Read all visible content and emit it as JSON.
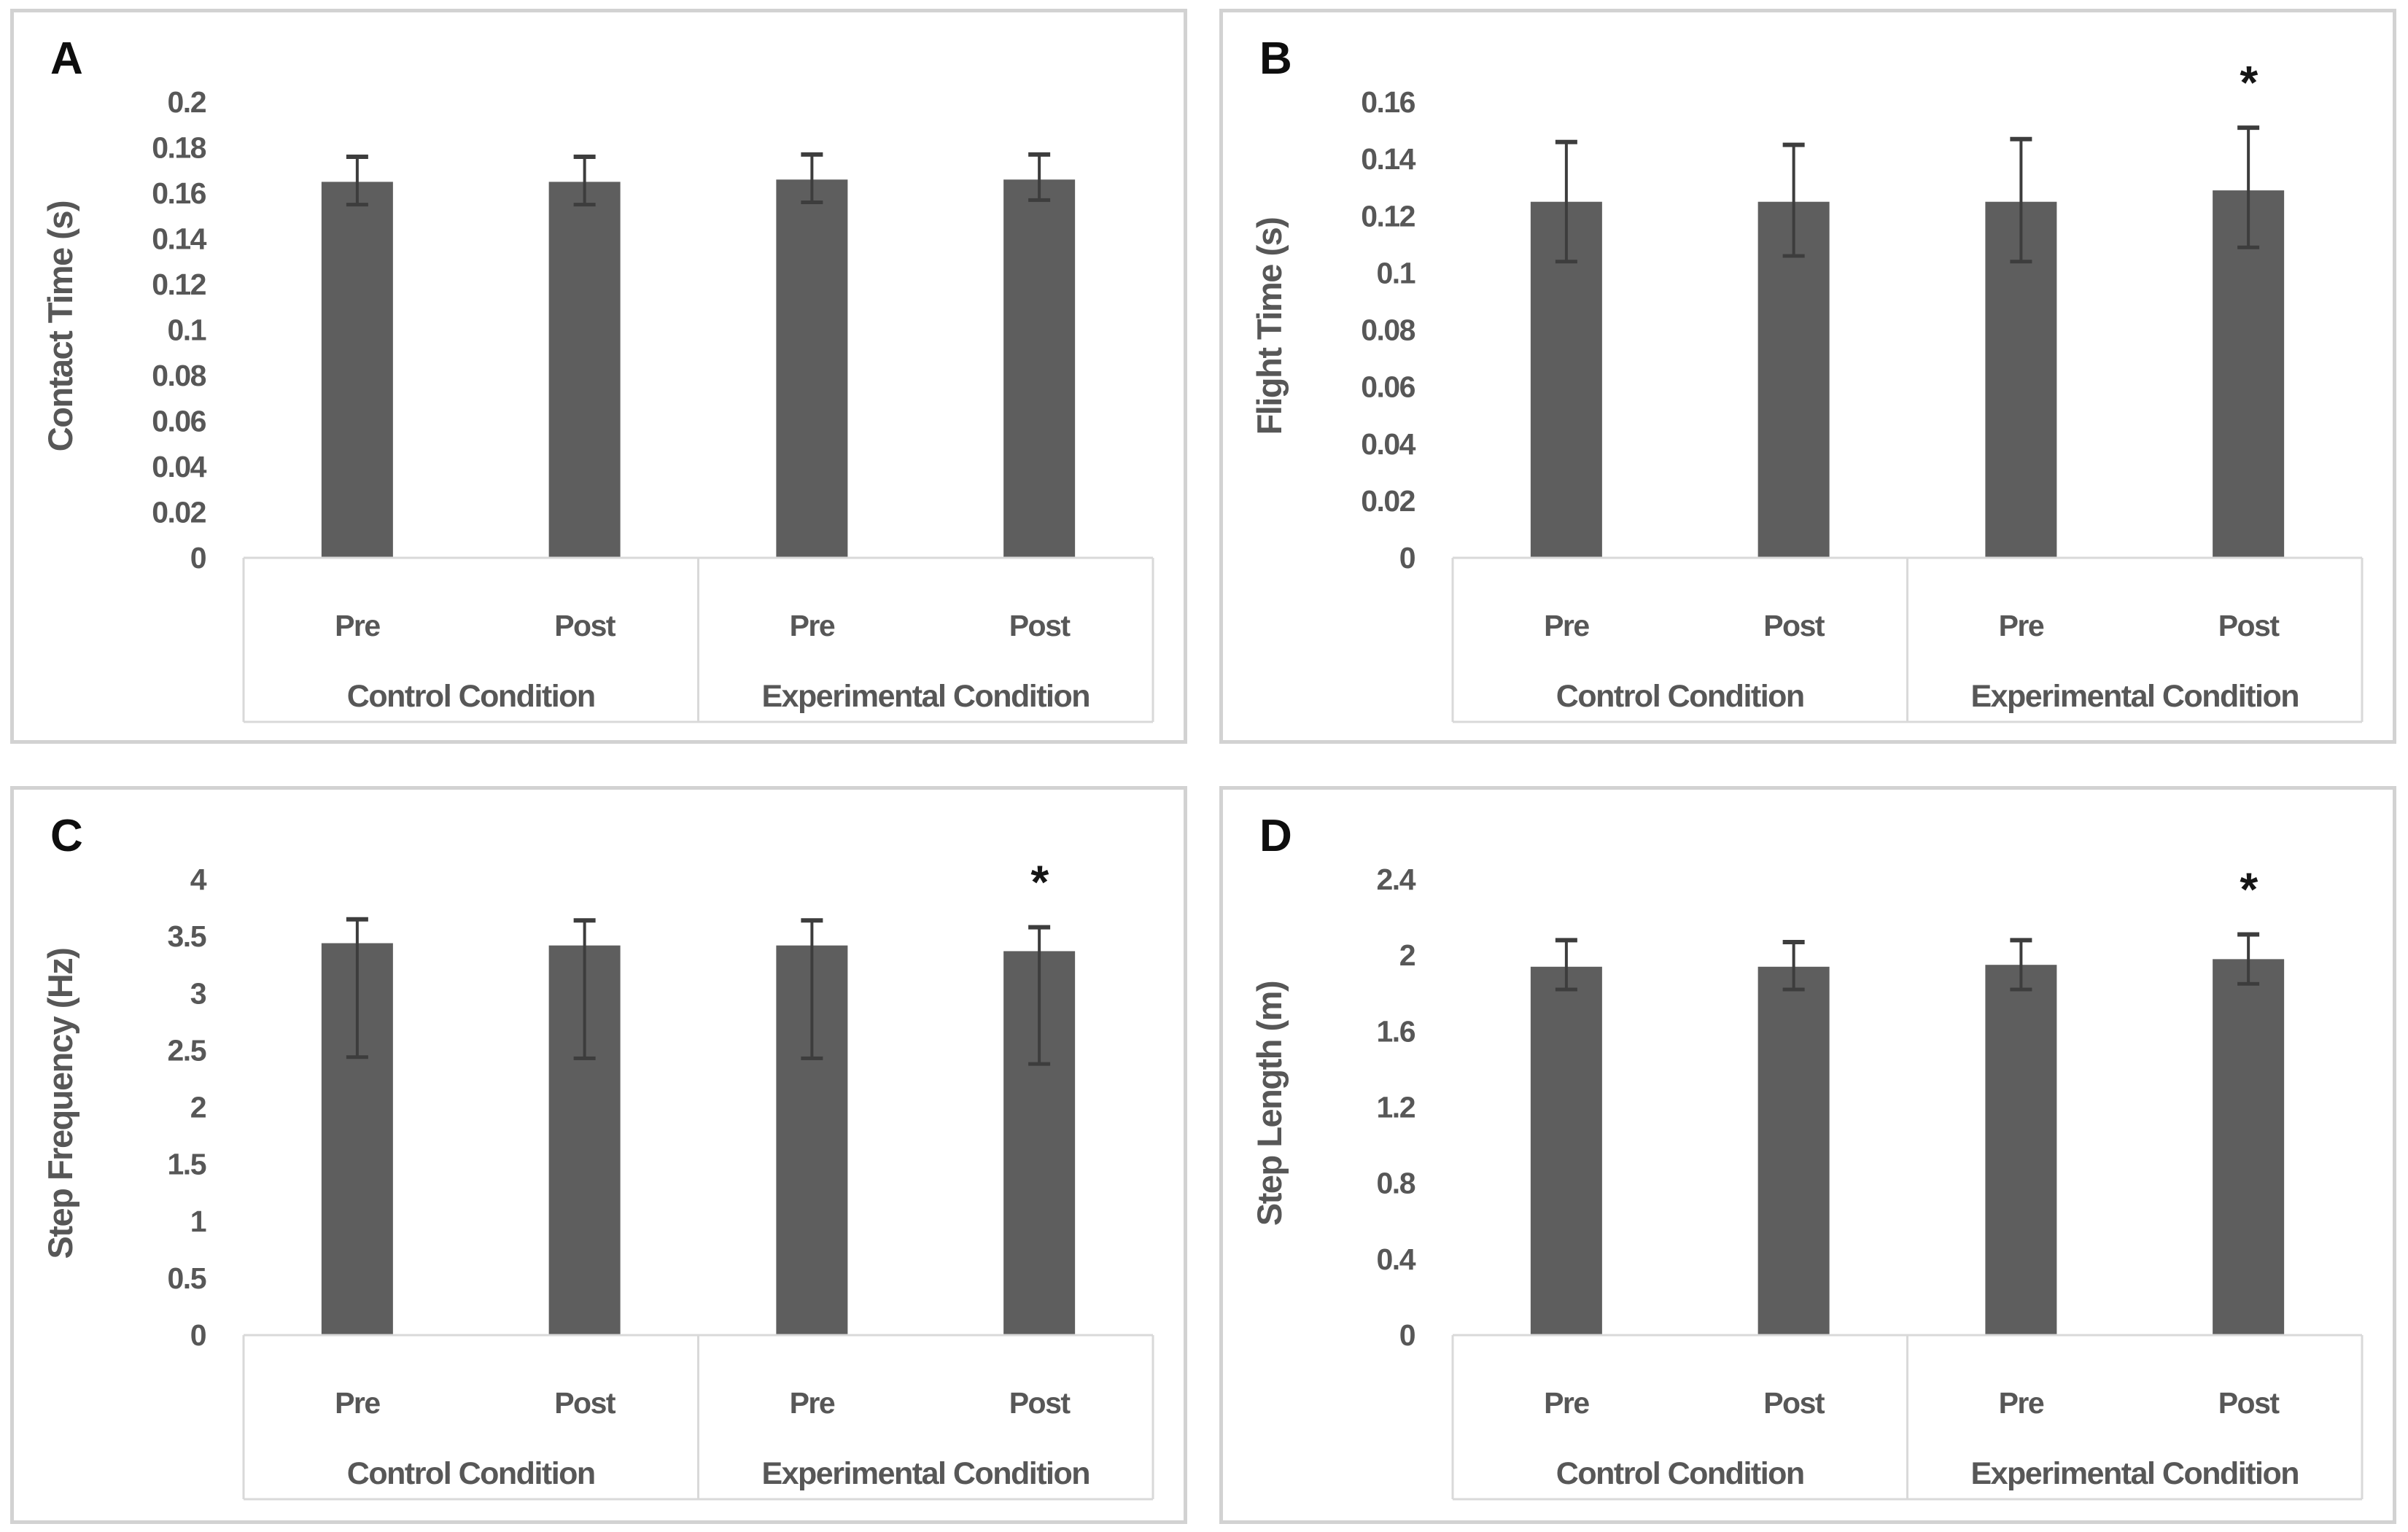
{
  "page": {
    "background": "#ffffff",
    "card_border_color": "#d2d2d2",
    "bar_color": "#5e5e5e",
    "error_bar_color": "#3d3d3d",
    "text_color": "#575757",
    "panel_letter_color": "#0e0e0e",
    "axis_band_line_color": "#d9d9d9",
    "significance_symbol": "*"
  },
  "chart_data": [
    {
      "type": "bar",
      "panel_letter": "A",
      "title": "",
      "xlabel": "",
      "ylabel": "Contact Time (s)",
      "ylim": [
        0,
        0.2
      ],
      "ytick_values": [
        0,
        0.02,
        0.04,
        0.06,
        0.08,
        0.1,
        0.12,
        0.14,
        0.16,
        0.18,
        0.2
      ],
      "ytick_labels": [
        "0",
        "0.02",
        "0.04",
        "0.06",
        "0.08",
        "0.1",
        "0.12",
        "0.14",
        "0.16",
        "0.18",
        "0.2"
      ],
      "categories": [
        "Pre",
        "Post",
        "Pre",
        "Post"
      ],
      "groups": [
        "Control Condition",
        "Experimental Condition"
      ],
      "values": [
        0.165,
        0.165,
        0.166,
        0.166
      ],
      "err_up": [
        0.011,
        0.011,
        0.011,
        0.011
      ],
      "err_down": [
        0.01,
        0.01,
        0.01,
        0.009
      ],
      "sig_index": null,
      "grid": "off",
      "legend": "none"
    },
    {
      "type": "bar",
      "panel_letter": "B",
      "title": "",
      "xlabel": "",
      "ylabel": "Flight Time (s)",
      "ylim": [
        0,
        0.16
      ],
      "ytick_values": [
        0,
        0.02,
        0.04,
        0.06,
        0.08,
        0.1,
        0.12,
        0.14,
        0.16
      ],
      "ytick_labels": [
        "0",
        "0.02",
        "0.04",
        "0.06",
        "0.08",
        "0.1",
        "0.12",
        "0.14",
        "0.16"
      ],
      "categories": [
        "Pre",
        "Post",
        "Pre",
        "Post"
      ],
      "groups": [
        "Control Condition",
        "Experimental Condition"
      ],
      "values": [
        0.125,
        0.125,
        0.125,
        0.129
      ],
      "err_up": [
        0.021,
        0.02,
        0.022,
        0.022
      ],
      "err_down": [
        0.021,
        0.019,
        0.021,
        0.02
      ],
      "sig_index": 3,
      "grid": "off",
      "legend": "none"
    },
    {
      "type": "bar",
      "panel_letter": "C",
      "title": "",
      "xlabel": "",
      "ylabel": "Step Frequency (Hz)",
      "ylim": [
        0,
        4
      ],
      "ytick_values": [
        0,
        0.5,
        1,
        1.5,
        2,
        2.5,
        3,
        3.5,
        4
      ],
      "ytick_labels": [
        "0",
        "0.5",
        "1",
        "1.5",
        "2",
        "2.5",
        "3",
        "3.5",
        "4"
      ],
      "categories": [
        "Pre",
        "Post",
        "Pre",
        "Post"
      ],
      "groups": [
        "Control Condition",
        "Experimental Condition"
      ],
      "values": [
        3.44,
        3.42,
        3.42,
        3.37
      ],
      "err_up": [
        0.21,
        0.22,
        0.22,
        0.21
      ],
      "err_down": [
        1.0,
        0.99,
        0.99,
        0.99
      ],
      "sig_index": 3,
      "grid": "off",
      "legend": "none"
    },
    {
      "type": "bar",
      "panel_letter": "D",
      "title": "",
      "xlabel": "",
      "ylabel": "Step Length (m)",
      "ylim": [
        0,
        2.4
      ],
      "ytick_values": [
        0,
        0.4,
        0.8,
        1.2,
        1.6,
        2,
        2.4
      ],
      "ytick_labels": [
        "0",
        "0.4",
        "0.8",
        "1.2",
        "1.6",
        "2",
        "2.4"
      ],
      "categories": [
        "Pre",
        "Post",
        "Pre",
        "Post"
      ],
      "groups": [
        "Control Condition",
        "Experimental Condition"
      ],
      "values": [
        1.94,
        1.94,
        1.95,
        1.98
      ],
      "err_up": [
        0.14,
        0.13,
        0.13,
        0.13
      ],
      "err_down": [
        0.12,
        0.12,
        0.13,
        0.13
      ],
      "sig_index": 3,
      "grid": "off",
      "legend": "none"
    }
  ]
}
